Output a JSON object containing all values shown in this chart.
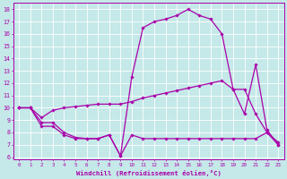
{
  "xlabel": "Windchill (Refroidissement éolien,°C)",
  "bg_color": "#c5e8e8",
  "line_color": "#aa00aa",
  "grid_color": "#ffffff",
  "x_ticks": [
    0,
    1,
    2,
    3,
    4,
    5,
    6,
    7,
    8,
    9,
    10,
    11,
    12,
    13,
    14,
    15,
    16,
    17,
    18,
    19,
    20,
    21,
    22,
    23
  ],
  "y_ticks": [
    6,
    7,
    8,
    9,
    10,
    11,
    12,
    13,
    14,
    15,
    16,
    17,
    18
  ],
  "ylim": [
    5.8,
    18.5
  ],
  "xlim": [
    -0.5,
    23.5
  ],
  "series": [
    {
      "x": [
        0,
        1,
        2,
        3,
        4,
        5,
        6,
        7,
        8,
        9,
        10,
        11,
        12,
        13,
        14,
        15,
        16,
        17,
        18,
        19,
        20,
        21,
        22,
        23
      ],
      "y": [
        10,
        10,
        8.5,
        8.5,
        7.8,
        7.5,
        7.5,
        7.5,
        7.8,
        6.1,
        7.8,
        7.5,
        7.5,
        7.5,
        7.5,
        7.5,
        7.5,
        7.5,
        7.5,
        7.5,
        7.5,
        7.5,
        8.0,
        7.0
      ]
    },
    {
      "x": [
        0,
        1,
        2,
        3,
        4,
        5,
        6,
        7,
        8,
        9,
        10,
        11,
        12,
        13,
        14,
        15,
        16,
        17,
        18,
        19,
        20,
        21,
        22,
        23
      ],
      "y": [
        10,
        10,
        9.2,
        9.8,
        10.0,
        10.1,
        10.2,
        10.3,
        10.3,
        10.3,
        10.5,
        10.8,
        11.0,
        11.2,
        11.4,
        11.6,
        11.8,
        12.0,
        12.2,
        11.5,
        11.5,
        9.5,
        8.0,
        7.2
      ]
    },
    {
      "x": [
        0,
        1,
        2,
        3,
        4,
        5,
        6,
        7,
        8,
        9,
        10,
        11,
        12,
        13,
        14,
        15,
        16,
        17,
        18,
        19,
        20,
        21,
        22,
        23
      ],
      "y": [
        10,
        10,
        8.8,
        8.8,
        8.0,
        7.6,
        7.5,
        7.5,
        7.8,
        6.1,
        12.5,
        16.5,
        17.0,
        17.2,
        17.5,
        18.0,
        17.5,
        17.2,
        16.0,
        11.5,
        9.5,
        13.5,
        8.2,
        7.0
      ]
    }
  ]
}
